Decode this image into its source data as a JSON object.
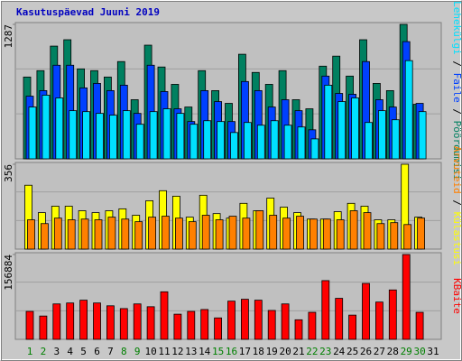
{
  "chart_data": [
    {
      "type": "bar",
      "title": "Kasutuspäevad Juuni 2019",
      "ylim": [
        0,
        1287
      ],
      "yticks": [
        1287
      ],
      "legend_separator": " / ",
      "series": [
        {
          "name": "Pöördumisi",
          "color": "#008060",
          "values": [
            783,
            844,
            1079,
            1140,
            861,
            844,
            783,
            931,
            566,
            1088,
            879,
            713,
            496,
            844,
            653,
            531,
            1001,
            827,
            713,
            844,
            566,
            479,
            887,
            983,
            792,
            1140,
            722,
            653,
            1287,
            522,
            null
          ]
        },
        {
          "name": "Faile",
          "color": "#0040ff",
          "values": [
            600,
            653,
            896,
            896,
            679,
            722,
            653,
            705,
            435,
            896,
            644,
            479,
            357,
            653,
            548,
            357,
            740,
            653,
            496,
            566,
            461,
            278,
            792,
            626,
            618,
            931,
            566,
            496,
            1122,
            531,
            null
          ]
        },
        {
          "name": "Lehekülgi",
          "color": "#00e0ff",
          "values": [
            496,
            609,
            583,
            461,
            452,
            435,
            418,
            461,
            331,
            452,
            479,
            435,
            331,
            365,
            357,
            252,
            348,
            322,
            365,
            322,
            305,
            191,
            705,
            548,
            583,
            348,
            461,
            374,
            940,
            452,
            null
          ]
        }
      ]
    },
    {
      "type": "bar",
      "ylim": [
        0,
        356
      ],
      "yticks": [
        356
      ],
      "legend_separator": " / ",
      "series": [
        {
          "name": "Külastusi",
          "color": "#ffff00",
          "values": [
            268,
            153,
            180,
            180,
            161,
            153,
            161,
            169,
            142,
            203,
            245,
            222,
            134,
            226,
            149,
            130,
            192,
            161,
            214,
            176,
            153,
            126,
            126,
            157,
            192,
            180,
            123,
            123,
            356,
            134,
            null
          ]
        },
        {
          "name": "Arvuteid",
          "color": "#ff8000",
          "values": [
            123,
            107,
            130,
            123,
            126,
            123,
            134,
            126,
            115,
            134,
            138,
            130,
            115,
            142,
            123,
            138,
            130,
            161,
            142,
            130,
            138,
            126,
            126,
            123,
            161,
            153,
            107,
            111,
            103,
            130,
            null
          ]
        }
      ]
    },
    {
      "type": "bar",
      "ylim": [
        0,
        156884
      ],
      "yticks": [
        156884
      ],
      "categories": [
        "1",
        "2",
        "3",
        "4",
        "5",
        "6",
        "7",
        "8",
        "9",
        "10",
        "11",
        "12",
        "13",
        "14",
        "15",
        "16",
        "17",
        "18",
        "19",
        "20",
        "21",
        "22",
        "23",
        "24",
        "25",
        "26",
        "27",
        "28",
        "29",
        "30",
        "31"
      ],
      "category_colors": [
        "#008000",
        "#008000",
        "#000000",
        "#000000",
        "#000000",
        "#000000",
        "#000000",
        "#008000",
        "#008000",
        "#000000",
        "#000000",
        "#000000",
        "#000000",
        "#000000",
        "#008000",
        "#008000",
        "#000000",
        "#000000",
        "#000000",
        "#000000",
        "#000000",
        "#008000",
        "#008000",
        "#000000",
        "#000000",
        "#000000",
        "#000000",
        "#000000",
        "#008000",
        "#008000",
        "#000000"
      ],
      "series": [
        {
          "name": "KBaite",
          "color": "#ff0000",
          "values": [
            51720,
            43100,
            65512,
            67236,
            72408,
            67236,
            62064,
            56892,
            65512,
            60340,
            87924,
            46548,
            51720,
            55168,
            39652,
            70684,
            74132,
            72408,
            53444,
            65512,
            36204,
            49996,
            108612,
            75856,
            44824,
            103440,
            68960,
            91372,
            156884,
            49996,
            null
          ]
        }
      ]
    }
  ]
}
